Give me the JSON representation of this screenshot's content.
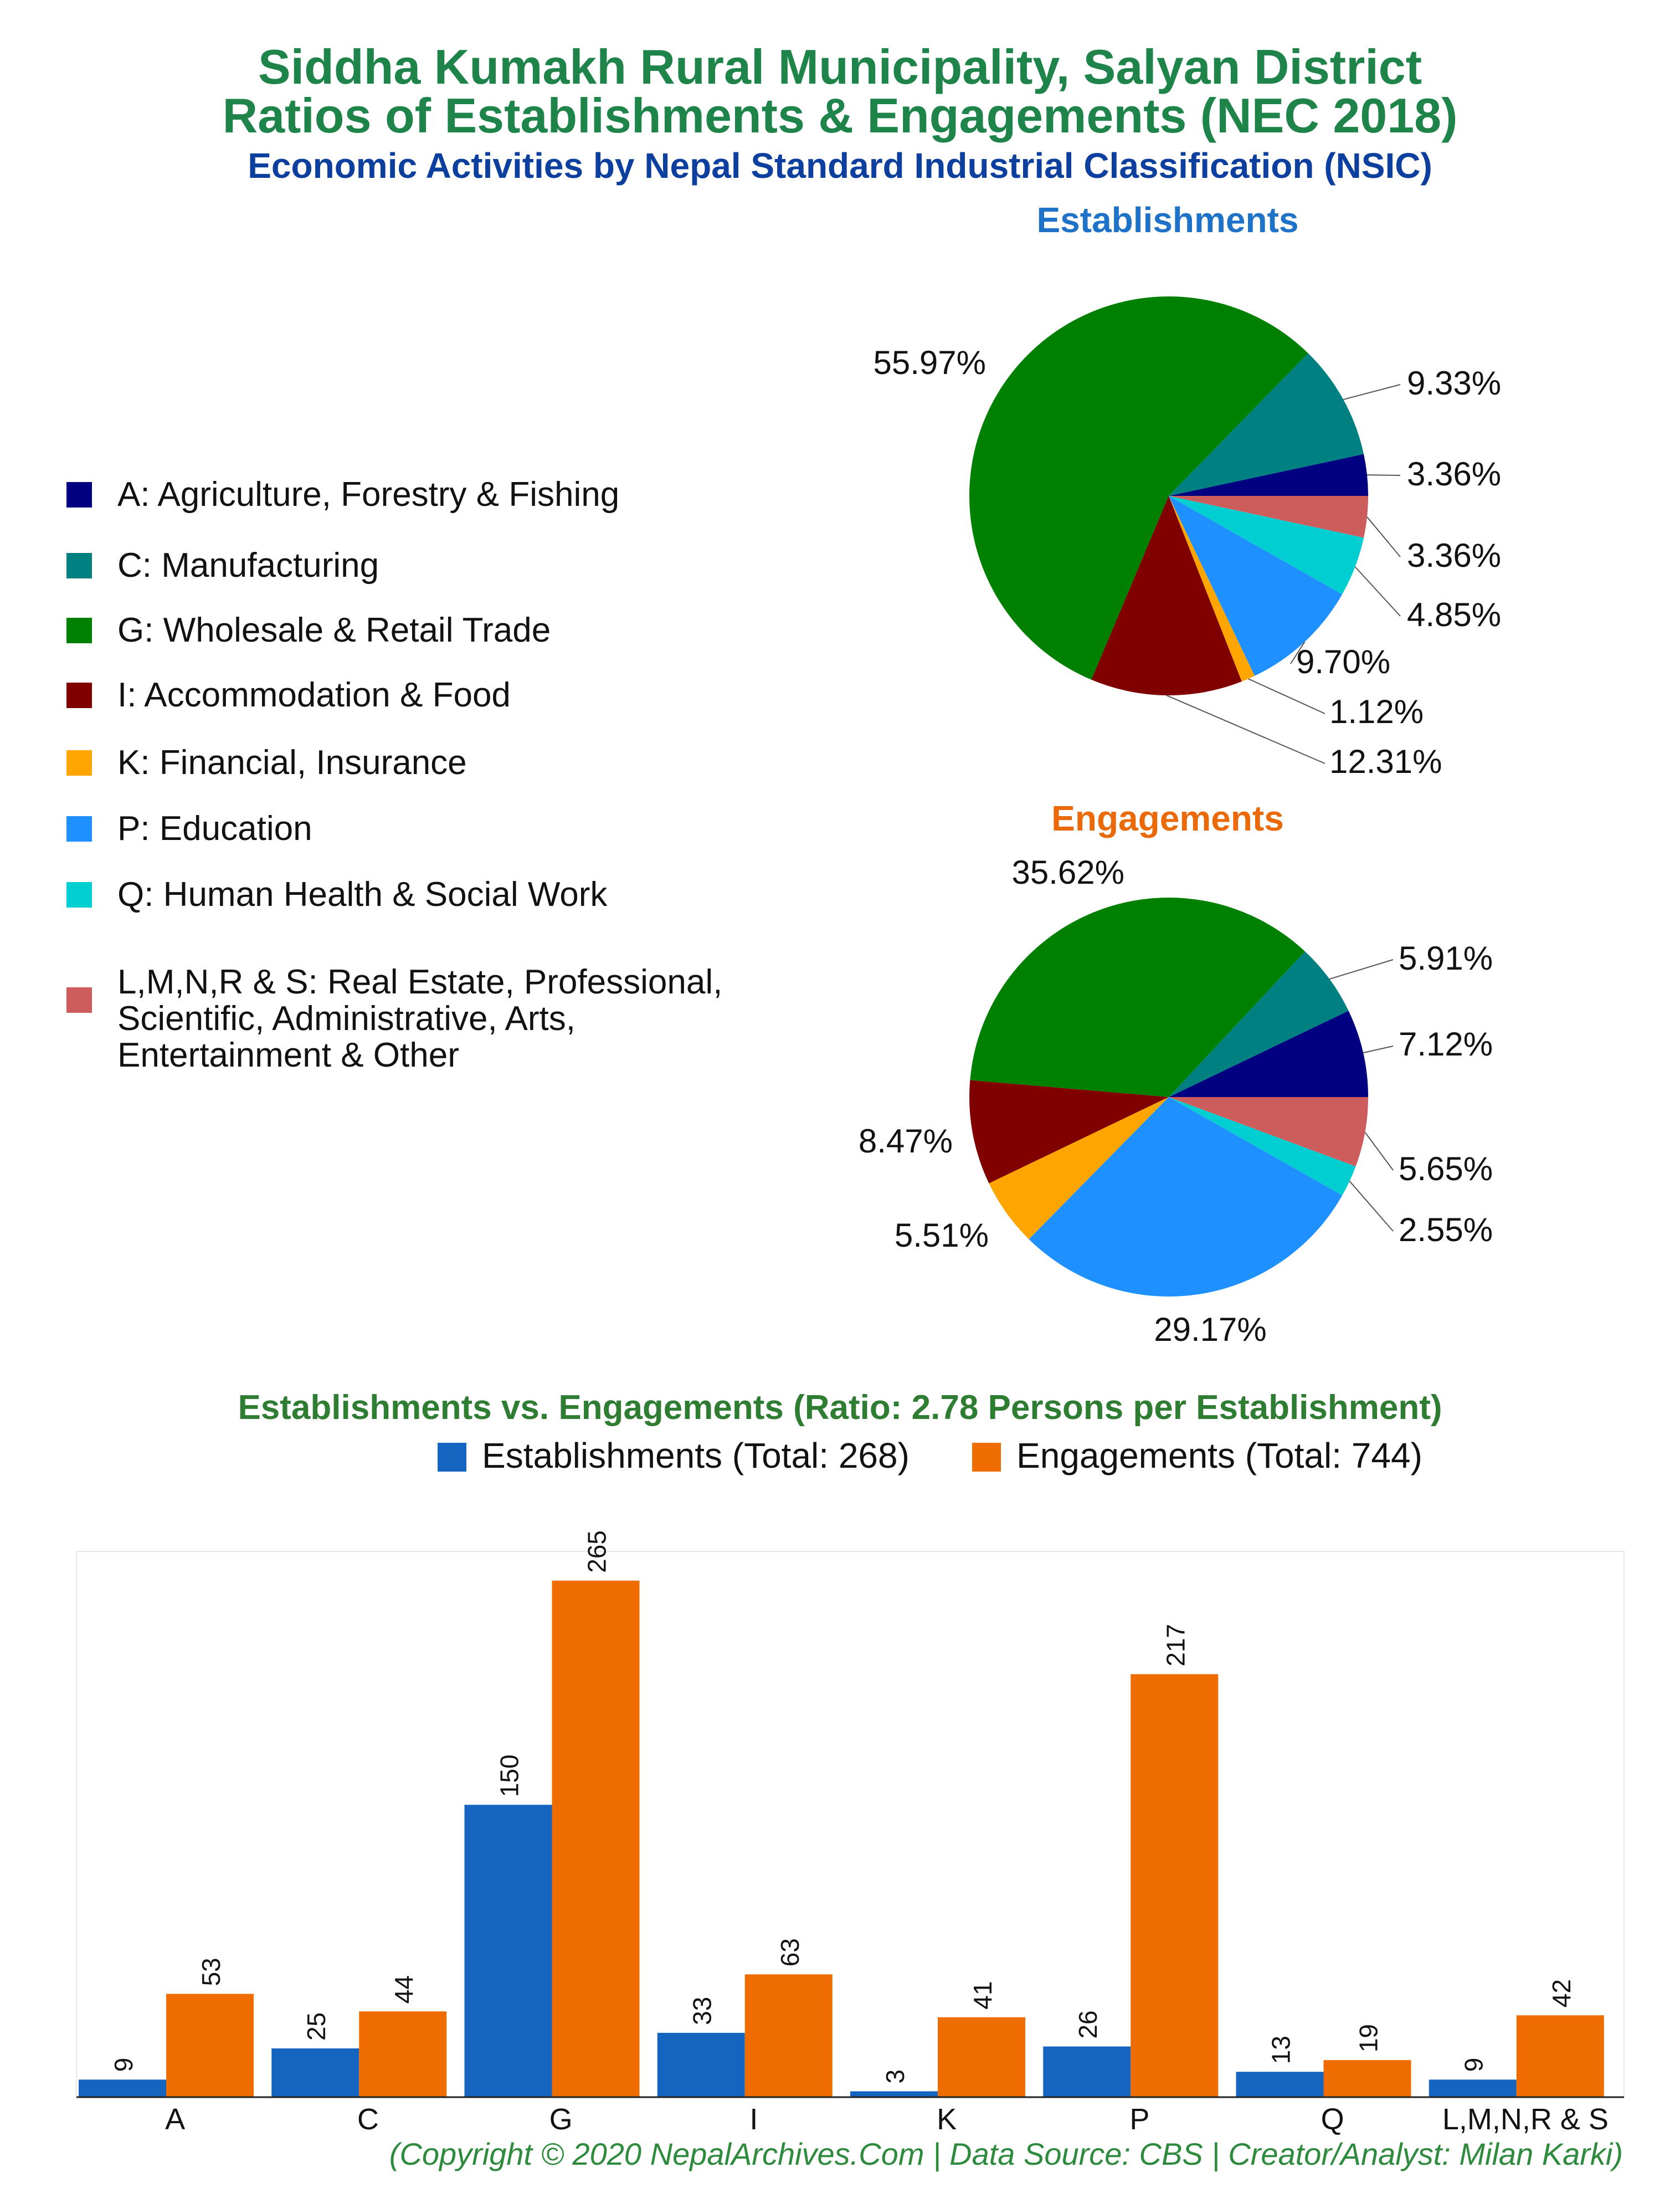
{
  "title_line1": "Siddha Kumakh Rural Municipality, Salyan District",
  "title_line2": "Ratios of Establishments & Engagements (NEC 2018)",
  "subtitle": "Economic Activities by Nepal Standard Industrial Classification (NSIC)",
  "pie_establishments_title": "Establishments",
  "pie_engagements_title": "Engagements",
  "legend": [
    {
      "label": "A: Agriculture, Forestry & Fishing",
      "color": "#000080"
    },
    {
      "label": "C: Manufacturing",
      "color": "#008080"
    },
    {
      "label": "G: Wholesale & Retail Trade",
      "color": "#008000"
    },
    {
      "label": "I: Accommodation & Food",
      "color": "#800000"
    },
    {
      "label": "K: Financial, Insurance",
      "color": "#ffa500"
    },
    {
      "label": "P: Education",
      "color": "#1e90ff"
    },
    {
      "label": "Q: Human Health & Social Work",
      "color": "#00ced1"
    },
    {
      "label": "L,M,N,R & S: Real Estate, Professional,\nScientific, Administrative, Arts,\nEntertainment & Other",
      "color": "#cd5c5c"
    }
  ],
  "bar_title": "Establishments vs. Engagements (Ratio: 2.78 Persons per Establishment)",
  "bar_legend": {
    "establishments": "Establishments (Total: 268)",
    "engagements": "Engagements (Total: 744)",
    "establishments_color": "#1565c0",
    "engagements_color": "#ef6c00"
  },
  "footer": "(Copyright © 2020 NepalArchives.Com | Data Source: CBS | Creator/Analyst: Milan Karki)",
  "chart_data": [
    {
      "type": "pie",
      "title": "Establishments",
      "categories": [
        "A",
        "C",
        "G",
        "I",
        "K",
        "P",
        "Q",
        "L,M,N,R & S"
      ],
      "values": [
        3.36,
        9.33,
        55.97,
        12.31,
        1.12,
        9.7,
        4.85,
        3.36
      ],
      "labels": [
        "3.36%",
        "9.33%",
        "55.97%",
        "12.31%",
        "1.12%",
        "9.70%",
        "4.85%",
        "3.36%"
      ]
    },
    {
      "type": "pie",
      "title": "Engagements",
      "categories": [
        "A",
        "C",
        "G",
        "I",
        "K",
        "P",
        "Q",
        "L,M,N,R & S"
      ],
      "values": [
        7.12,
        5.91,
        35.62,
        8.47,
        5.51,
        29.17,
        2.55,
        5.65
      ],
      "labels": [
        "7.12%",
        "5.91%",
        "35.62%",
        "8.47%",
        "5.51%",
        "29.17%",
        "2.55%",
        "5.65%"
      ]
    },
    {
      "type": "bar",
      "title": "Establishments vs. Engagements (Ratio: 2.78 Persons per Establishment)",
      "categories": [
        "A",
        "C",
        "G",
        "I",
        "K",
        "P",
        "Q",
        "L,M,N,R & S"
      ],
      "series": [
        {
          "name": "Establishments (Total: 268)",
          "values": [
            9,
            25,
            150,
            33,
            3,
            26,
            13,
            9
          ]
        },
        {
          "name": "Engagements (Total: 744)",
          "values": [
            53,
            44,
            265,
            63,
            41,
            217,
            19,
            42
          ]
        }
      ],
      "ylim": [
        0,
        280
      ],
      "legend": "top"
    }
  ]
}
